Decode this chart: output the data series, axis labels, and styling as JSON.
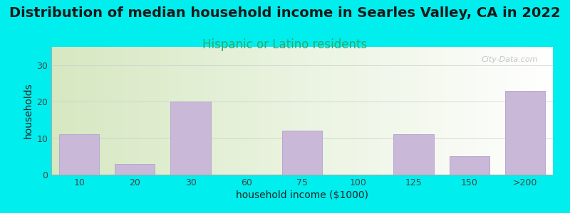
{
  "title": "Distribution of median household income in Searles Valley, CA in 2022",
  "subtitle": "Hispanic or Latino residents",
  "xlabel": "household income ($1000)",
  "ylabel": "households",
  "categories": [
    "10",
    "20",
    "30",
    "60",
    "75",
    "100",
    "125",
    "150",
    ">200"
  ],
  "values": [
    11,
    3,
    20,
    0,
    12,
    0,
    11,
    5,
    23
  ],
  "bar_color": "#c9b8d8",
  "bar_edge_color": "#b8a8cc",
  "background_color": "#00eeee",
  "plot_bg_topleft": "#d6e8c0",
  "plot_bg_topright": "#eef5e8",
  "plot_bg_bottomleft": "#e8f0d8",
  "plot_bg_bottomright": "#ffffff",
  "ylim": [
    0,
    35
  ],
  "yticks": [
    0,
    10,
    20,
    30
  ],
  "title_fontsize": 14,
  "subtitle_fontsize": 12,
  "subtitle_color": "#2aaa70",
  "axis_label_fontsize": 10,
  "tick_fontsize": 9,
  "watermark": "City-Data.com"
}
